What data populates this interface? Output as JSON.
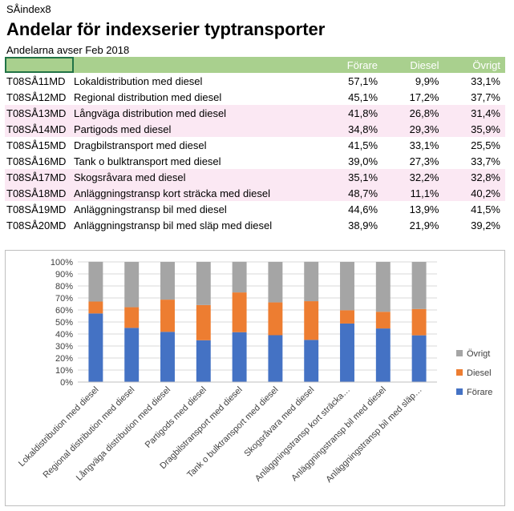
{
  "sheet_label": "SÅindex8",
  "title": "Andelar för indexserier typtransporter",
  "subtitle": "Andelarna avser Feb 2018",
  "table": {
    "headers": [
      "",
      "",
      "Förare",
      "Diesel",
      "Övrigt"
    ],
    "rows": [
      {
        "code": "T08SÅ11MD",
        "desc": "Lokaldistribution med diesel",
        "forare": "57,1%",
        "diesel": "9,9%",
        "ovrigt": "33,1%"
      },
      {
        "code": "T08SÅ12MD",
        "desc": "Regional distribution med diesel",
        "forare": "45,1%",
        "diesel": "17,2%",
        "ovrigt": "37,7%"
      },
      {
        "code": "T08SÅ13MD",
        "desc": "Långväga distribution med diesel",
        "forare": "41,8%",
        "diesel": "26,8%",
        "ovrigt": "31,4%"
      },
      {
        "code": "T08SÅ14MD",
        "desc": "Partigods med diesel",
        "forare": "34,8%",
        "diesel": "29,3%",
        "ovrigt": "35,9%"
      },
      {
        "code": "T08SÅ15MD",
        "desc": "Dragbilstransport med diesel",
        "forare": "41,5%",
        "diesel": "33,1%",
        "ovrigt": "25,5%"
      },
      {
        "code": "T08SÅ16MD",
        "desc": "Tank o bulktransport med diesel",
        "forare": "39,0%",
        "diesel": "27,3%",
        "ovrigt": "33,7%"
      },
      {
        "code": "T08SÅ17MD",
        "desc": "Skogsråvara med diesel",
        "forare": "35,1%",
        "diesel": "32,2%",
        "ovrigt": "32,8%"
      },
      {
        "code": "T08SÅ18MD",
        "desc": "Anläggningstransp kort sträcka med diesel",
        "forare": "48,7%",
        "diesel": "11,1%",
        "ovrigt": "40,2%"
      },
      {
        "code": "T08SÅ19MD",
        "desc": "Anläggningstransp bil med diesel",
        "forare": "44,6%",
        "diesel": "13,9%",
        "ovrigt": "41,5%"
      },
      {
        "code": "T08SÅ20MD",
        "desc": "Anläggningstransp bil med släp med diesel",
        "forare": "38,9%",
        "diesel": "21,9%",
        "ovrigt": "39,2%"
      }
    ]
  },
  "chart_data": {
    "type": "bar",
    "stacked": true,
    "percent": true,
    "categories": [
      "Lokaldistribution med diesel",
      "Regional distribution med diesel",
      "Långväga distribution med diesel",
      "Partigods med diesel",
      "Dragbilstransport med diesel",
      "Tank o bulktransport med diesel",
      "Skogsråvara med diesel",
      "Anläggningstransp kort sträcka…",
      "Anläggningstransp bil med diesel",
      "Anläggningstransp bil med släp…"
    ],
    "series": [
      {
        "name": "Förare",
        "color": "#4472c4",
        "values": [
          57.1,
          45.1,
          41.8,
          34.8,
          41.5,
          39.0,
          35.1,
          48.7,
          44.6,
          38.9
        ]
      },
      {
        "name": "Diesel",
        "color": "#ed7d31",
        "values": [
          9.9,
          17.2,
          26.8,
          29.3,
          33.1,
          27.3,
          32.2,
          11.1,
          13.9,
          21.9
        ]
      },
      {
        "name": "Övrigt",
        "color": "#a5a5a5",
        "values": [
          33.1,
          37.7,
          31.4,
          35.9,
          25.5,
          33.7,
          32.8,
          40.2,
          41.5,
          39.2
        ]
      }
    ],
    "ylim": [
      0,
      100
    ],
    "yticks": [
      "0%",
      "10%",
      "20%",
      "30%",
      "40%",
      "50%",
      "60%",
      "70%",
      "80%",
      "90%",
      "100%"
    ],
    "grid": true,
    "legend_position": "right"
  }
}
